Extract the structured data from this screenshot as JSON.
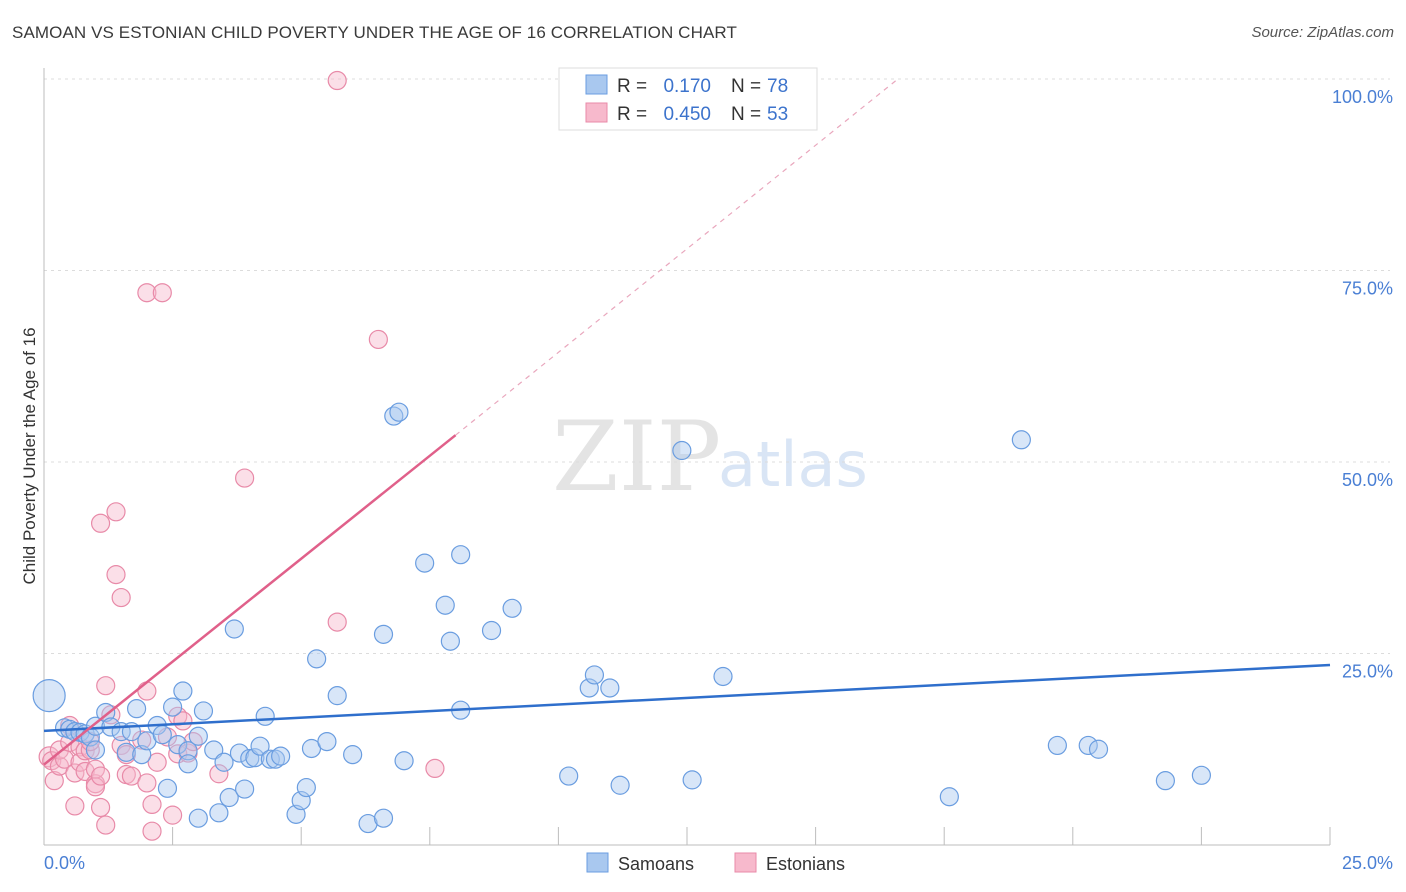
{
  "title": "SAMOAN VS ESTONIAN CHILD POVERTY UNDER THE AGE OF 16 CORRELATION CHART",
  "source": "Source: ZipAtlas.com",
  "watermark": {
    "zip": "ZIP",
    "atlas": "atlas"
  },
  "legend": {
    "rows": [
      {
        "r_label": "R =",
        "r_value": "0.170",
        "n_label": "N =",
        "n_value": "78"
      },
      {
        "r_label": "R =",
        "r_value": "0.450",
        "n_label": "N =",
        "n_value": "53"
      }
    ]
  },
  "bottom_legend": {
    "samoans": "Samoans",
    "estonians": "Estonians"
  },
  "colors": {
    "samoan_fill": "#a9c8ef",
    "samoan_stroke": "#6a9de0",
    "samoan_line": "#2f6fcc",
    "estonian_fill": "#f7b9cc",
    "estonian_stroke": "#e88aa8",
    "estonian_line": "#e0608a",
    "tick": "#4a7fd4"
  },
  "chart_data": {
    "type": "scatter",
    "title": "SAMOAN VS ESTONIAN CHILD POVERTY UNDER THE AGE OF 16 CORRELATION CHART",
    "xlabel": "",
    "ylabel": "Child Poverty Under the Age of 16",
    "xlim": [
      0,
      25
    ],
    "ylim": [
      0,
      100
    ],
    "x_tick_labels": [
      "0.0%",
      "25.0%"
    ],
    "y_tick_labels": [
      "25.0%",
      "50.0%",
      "75.0%",
      "100.0%"
    ],
    "y_ticks": [
      25,
      50,
      75,
      100
    ],
    "series": [
      {
        "name": "Samoans",
        "R": 0.17,
        "N": 78,
        "trend": {
          "x": [
            0,
            25
          ],
          "y": [
            14.9,
            23.5
          ],
          "dashed_extension": false
        },
        "points": [
          [
            0.1,
            19.5,
            16
          ],
          [
            0.4,
            15.3,
            9
          ],
          [
            0.5,
            15.1,
            9
          ],
          [
            0.6,
            14.8,
            9
          ],
          [
            0.7,
            14.7,
            9
          ],
          [
            0.8,
            14.5,
            9
          ],
          [
            0.9,
            14.1,
            9
          ],
          [
            1.0,
            12.4,
            9
          ],
          [
            1.0,
            15.5,
            9
          ],
          [
            1.2,
            17.3,
            9
          ],
          [
            1.3,
            15.4,
            9
          ],
          [
            1.5,
            14.8,
            9
          ],
          [
            1.6,
            12.1,
            9
          ],
          [
            1.7,
            14.8,
            9
          ],
          [
            1.8,
            17.8,
            9
          ],
          [
            1.9,
            11.8,
            9
          ],
          [
            2.0,
            13.6,
            9
          ],
          [
            2.2,
            15.6,
            9
          ],
          [
            2.3,
            14.4,
            9
          ],
          [
            2.4,
            7.4,
            9
          ],
          [
            2.5,
            18.0,
            9
          ],
          [
            2.6,
            13.1,
            9
          ],
          [
            2.7,
            20.1,
            9
          ],
          [
            2.8,
            12.3,
            9
          ],
          [
            2.8,
            10.6,
            9
          ],
          [
            3.0,
            14.2,
            9
          ],
          [
            3.0,
            3.5,
            9
          ],
          [
            3.1,
            17.5,
            9
          ],
          [
            3.3,
            12.4,
            9
          ],
          [
            3.4,
            4.2,
            9
          ],
          [
            3.5,
            10.8,
            9
          ],
          [
            3.6,
            6.2,
            9
          ],
          [
            3.7,
            28.2,
            9
          ],
          [
            3.8,
            12.0,
            9
          ],
          [
            3.9,
            7.3,
            9
          ],
          [
            4.0,
            11.3,
            9
          ],
          [
            4.1,
            11.4,
            9
          ],
          [
            4.2,
            12.9,
            9
          ],
          [
            4.3,
            16.8,
            9
          ],
          [
            4.4,
            11.2,
            9
          ],
          [
            4.5,
            11.2,
            9
          ],
          [
            4.6,
            11.6,
            9
          ],
          [
            4.9,
            4.0,
            9
          ],
          [
            5.0,
            5.8,
            9
          ],
          [
            5.1,
            7.5,
            9
          ],
          [
            5.2,
            12.6,
            9
          ],
          [
            5.3,
            24.3,
            9
          ],
          [
            5.5,
            13.5,
            9
          ],
          [
            5.7,
            19.5,
            9
          ],
          [
            6.0,
            11.8,
            9
          ],
          [
            6.3,
            2.8,
            9
          ],
          [
            6.6,
            3.5,
            9
          ],
          [
            6.6,
            27.5,
            9
          ],
          [
            6.8,
            56.0,
            9
          ],
          [
            6.9,
            56.5,
            9
          ],
          [
            7.0,
            11.0,
            9
          ],
          [
            7.4,
            36.8,
            9
          ],
          [
            7.8,
            31.3,
            9
          ],
          [
            7.9,
            26.6,
            9
          ],
          [
            8.1,
            37.9,
            9
          ],
          [
            8.1,
            17.6,
            9
          ],
          [
            8.7,
            28.0,
            9
          ],
          [
            9.1,
            30.9,
            9
          ],
          [
            10.2,
            9.0,
            9
          ],
          [
            10.6,
            20.5,
            9
          ],
          [
            10.7,
            22.2,
            9
          ],
          [
            11.0,
            20.5,
            9
          ],
          [
            11.2,
            7.8,
            9
          ],
          [
            12.4,
            51.5,
            9
          ],
          [
            12.6,
            8.5,
            9
          ],
          [
            13.2,
            22.0,
            9
          ],
          [
            17.6,
            6.3,
            9
          ],
          [
            19.0,
            52.9,
            9
          ],
          [
            19.7,
            13.0,
            9
          ],
          [
            20.3,
            13.0,
            9
          ],
          [
            20.5,
            12.5,
            9
          ],
          [
            21.8,
            8.4,
            9
          ],
          [
            22.5,
            9.1,
            9
          ]
        ]
      },
      {
        "name": "Estonians",
        "R": 0.45,
        "N": 53,
        "trend": {
          "x": [
            0,
            8.0
          ],
          "y": [
            10.5,
            53.5
          ],
          "dashed_extension": true,
          "dashed_to": [
            16.6,
            100
          ]
        },
        "points": [
          [
            0.1,
            11.5,
            10
          ],
          [
            0.15,
            11.0,
            9
          ],
          [
            0.2,
            8.4,
            9
          ],
          [
            0.3,
            10.3,
            9
          ],
          [
            0.3,
            12.4,
            9
          ],
          [
            0.4,
            11.2,
            9
          ],
          [
            0.5,
            13.4,
            9
          ],
          [
            0.5,
            15.6,
            9
          ],
          [
            0.6,
            9.4,
            9
          ],
          [
            0.6,
            5.1,
            9
          ],
          [
            0.7,
            12.8,
            9
          ],
          [
            0.7,
            10.8,
            9
          ],
          [
            0.8,
            12.3,
            9
          ],
          [
            0.8,
            9.6,
            9
          ],
          [
            0.9,
            12.4,
            9
          ],
          [
            0.9,
            13.5,
            9
          ],
          [
            1.0,
            8.0,
            9
          ],
          [
            1.0,
            7.6,
            9
          ],
          [
            1.0,
            9.9,
            9
          ],
          [
            1.1,
            4.9,
            9
          ],
          [
            1.1,
            9.0,
            9
          ],
          [
            1.2,
            2.6,
            9
          ],
          [
            1.1,
            42.0,
            9
          ],
          [
            1.2,
            20.8,
            9
          ],
          [
            1.4,
            43.5,
            9
          ],
          [
            1.4,
            35.3,
            9
          ],
          [
            1.5,
            32.3,
            9
          ],
          [
            1.5,
            13.0,
            9
          ],
          [
            1.6,
            9.2,
            9
          ],
          [
            1.6,
            11.8,
            9
          ],
          [
            1.7,
            9.0,
            9
          ],
          [
            1.9,
            13.7,
            9
          ],
          [
            2.0,
            72.1,
            9
          ],
          [
            2.0,
            20.1,
            9
          ],
          [
            2.0,
            8.1,
            9
          ],
          [
            2.1,
            1.8,
            9
          ],
          [
            2.1,
            5.3,
            9
          ],
          [
            2.2,
            10.8,
            9
          ],
          [
            2.3,
            72.1,
            9
          ],
          [
            2.4,
            14.1,
            9
          ],
          [
            2.5,
            3.9,
            9
          ],
          [
            2.6,
            11.9,
            9
          ],
          [
            2.6,
            16.8,
            9
          ],
          [
            2.7,
            16.2,
            9
          ],
          [
            2.8,
            12.0,
            9
          ],
          [
            2.9,
            13.5,
            9
          ],
          [
            3.4,
            9.3,
            9
          ],
          [
            3.9,
            47.9,
            9
          ],
          [
            5.7,
            29.1,
            9
          ],
          [
            5.7,
            99.8,
            9
          ],
          [
            6.5,
            66.0,
            9
          ],
          [
            7.6,
            10.0,
            9
          ],
          [
            1.3,
            17.0,
            9
          ]
        ]
      }
    ]
  }
}
